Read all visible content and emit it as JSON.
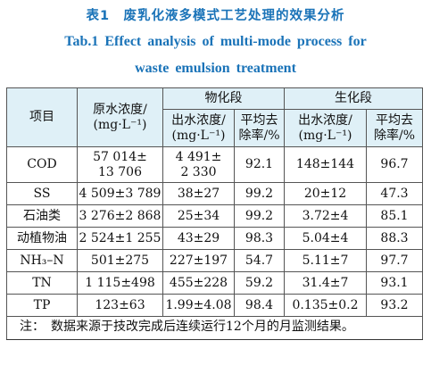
{
  "caption": {
    "cn": "表1　废乳化液多模式工艺处理的效果分析",
    "en_line1": "Tab.1   Effect analysis of multi-mode process for",
    "en_line2": "waste emulsion treatment"
  },
  "table": {
    "headers": {
      "item": "项目",
      "raw": "原水浓度/",
      "raw_unit": "(mg·L⁻¹)",
      "physchem": "物化段",
      "biochem": "生化段",
      "effluent": "出水浓度/",
      "effluent_unit": "(mg·L⁻¹)",
      "removal": "平均去",
      "removal2": "除率/%"
    },
    "rows": [
      {
        "item": "COD",
        "raw": "57 014±",
        "raw2": "13 706",
        "pc_out": "4 491±",
        "pc_out2": "2 330",
        "pc_rate": "92.1",
        "bc_out": "148±144",
        "bc_rate": "96.7"
      },
      {
        "item": "SS",
        "raw": "4 509±3 789",
        "pc_out": "38±27",
        "pc_rate": "99.2",
        "bc_out": "20±12",
        "bc_rate": "47.3"
      },
      {
        "item": "石油类",
        "raw": "3 276±2 868",
        "pc_out": "25±34",
        "pc_rate": "99.2",
        "bc_out": "3.72±4",
        "bc_rate": "85.1"
      },
      {
        "item": "动植物油",
        "raw": "2 524±1 255",
        "pc_out": "43±29",
        "pc_rate": "98.3",
        "bc_out": "5.04±4",
        "bc_rate": "88.3"
      },
      {
        "item": "NH₃–N",
        "raw": "501±275",
        "pc_out": "227±197",
        "pc_rate": "54.7",
        "bc_out": "5.11±7",
        "bc_rate": "97.7"
      },
      {
        "item": "TN",
        "raw": "1 115±498",
        "pc_out": "455±228",
        "pc_rate": "59.2",
        "bc_out": "31.4±7",
        "bc_rate": "93.1"
      },
      {
        "item": "TP",
        "raw": "123±63",
        "pc_out": "1.99±4.08",
        "pc_rate": "98.4",
        "bc_out": "0.135±0.2",
        "bc_rate": "93.2"
      }
    ],
    "note": "注：　数据来源于技改完成后连续运行12个月的月监测结果。"
  }
}
